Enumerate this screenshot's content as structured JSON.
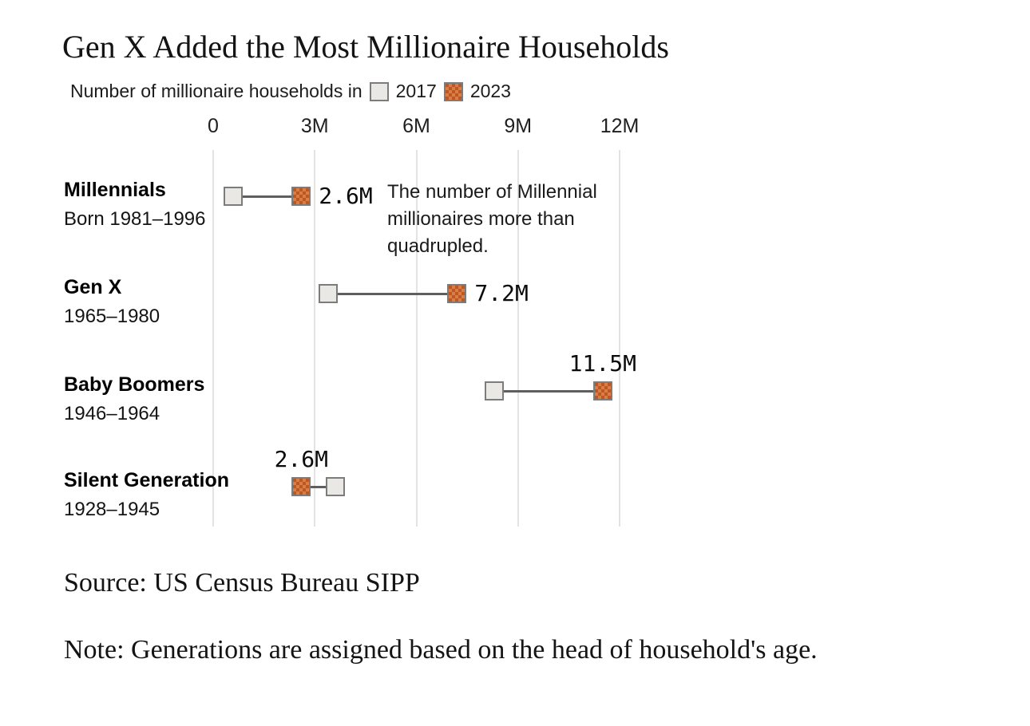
{
  "title": "Gen X Added the Most Millionaire Households",
  "legend": {
    "prefix": "Number of millionaire households in",
    "series": [
      {
        "label": "2017",
        "swatch": "gray-square"
      },
      {
        "label": "2023",
        "swatch": "orange-textured-square"
      }
    ]
  },
  "chart_data": {
    "type": "scatter",
    "variant": "dumbbell-range",
    "orientation": "horizontal",
    "title": "Gen X Added the Most Millionaire Households",
    "xlabel": "Number of millionaire households",
    "unit": "millions of households",
    "xlim": [
      0,
      12
    ],
    "x_ticks": [
      "0",
      "3M",
      "6M",
      "9M",
      "12M"
    ],
    "x_tick_values": [
      0,
      3,
      6,
      9,
      12
    ],
    "grid": "vertical-gridlines-on",
    "legend_position": "top",
    "categories": [
      "Millennials",
      "Gen X",
      "Baby Boomers",
      "Silent Generation"
    ],
    "series": [
      {
        "name": "2017",
        "values": [
          0.6,
          3.4,
          8.3,
          3.6
        ]
      },
      {
        "name": "2023",
        "values": [
          2.6,
          7.2,
          11.5,
          2.6
        ]
      }
    ],
    "rows": [
      {
        "name": "Millennials",
        "sub": "Born 1981–1996",
        "v2017": 0.6,
        "v2023": 2.6,
        "label_2023": "2.6M",
        "label_position": "right"
      },
      {
        "name": "Gen X",
        "sub": "1965–1980",
        "v2017": 3.4,
        "v2023": 7.2,
        "label_2023": "7.2M",
        "label_position": "right"
      },
      {
        "name": "Baby Boomers",
        "sub": "1946–1964",
        "v2017": 8.3,
        "v2023": 11.5,
        "label_2023": "11.5M",
        "label_position": "above"
      },
      {
        "name": "Silent Generation",
        "sub": "1928–1945",
        "v2017": 3.6,
        "v2023": 2.6,
        "label_2023": "2.6M",
        "label_position": "above"
      }
    ],
    "annotation": "The number of Millennial millionaires more than quadrupled."
  },
  "colors": {
    "marker_2017_fill": "#e9e8e5",
    "marker_border": "#7c7c7c",
    "marker_2023_base": "#bd5724",
    "marker_2023_texture": "#d97e44",
    "connector": "#5f5f5f",
    "gridline": "#e3e3e0",
    "text": "#0a0a0a"
  },
  "source": "Source: US Census Bureau SIPP",
  "note": "Note: Generations are assigned based on the head of household's age."
}
